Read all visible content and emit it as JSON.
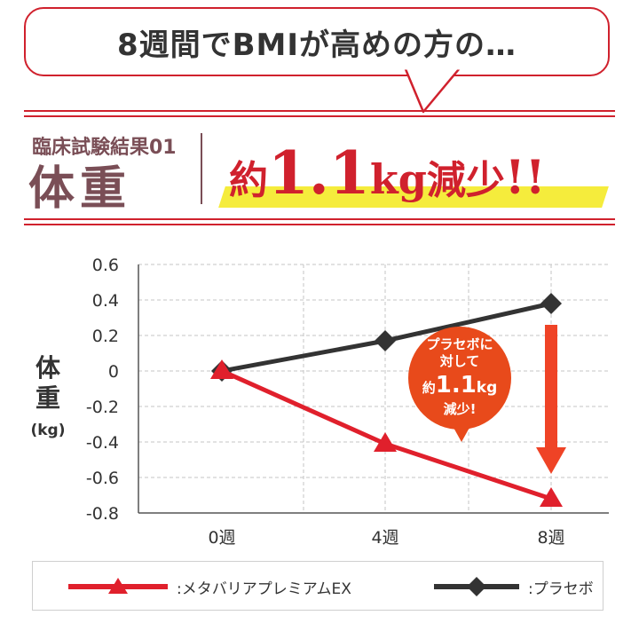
{
  "header": {
    "bubble_text": "8週間でBMIが高めの方の…",
    "result_label": "臨床試験結果01",
    "result_metric": "体重",
    "headline": {
      "prefix": "約",
      "value": "1.1",
      "unit": "kg",
      "suffix": "減少",
      "exclaim": "!!"
    }
  },
  "callout": {
    "line1": "プラセボに",
    "line2": "対して",
    "line3_prefix": "約",
    "line3_value": "1.1",
    "line3_unit": "kg",
    "line4": "減少!"
  },
  "colors": {
    "accent_red": "#d0212d",
    "placebo_black": "#333333",
    "highlight_yellow": "#f5ec3c",
    "callout_orange": "#e84a1b",
    "arrow_orange": "#ef4326",
    "title_brown": "#7a4e56"
  },
  "chart_data": {
    "type": "line",
    "ylabel_lines": [
      "体",
      "重",
      "(kg)"
    ],
    "categories": [
      "0週",
      "4週",
      "8週"
    ],
    "y_ticks": [
      "0.6",
      "0.4",
      "0.2",
      "0",
      "-0.2",
      "-0.4",
      "-0.6",
      "-0.8"
    ],
    "ylim": [
      -0.8,
      0.6
    ],
    "grid": true,
    "legend_position": "bottom",
    "series": [
      {
        "name": ":メタバリアプレミアムEX",
        "marker": "triangle",
        "color": "#e0202c",
        "values": [
          0,
          -0.41,
          -0.72
        ]
      },
      {
        "name": ":プラセボ",
        "marker": "diamond",
        "color": "#333333",
        "values": [
          0,
          0.17,
          0.38
        ]
      }
    ]
  }
}
